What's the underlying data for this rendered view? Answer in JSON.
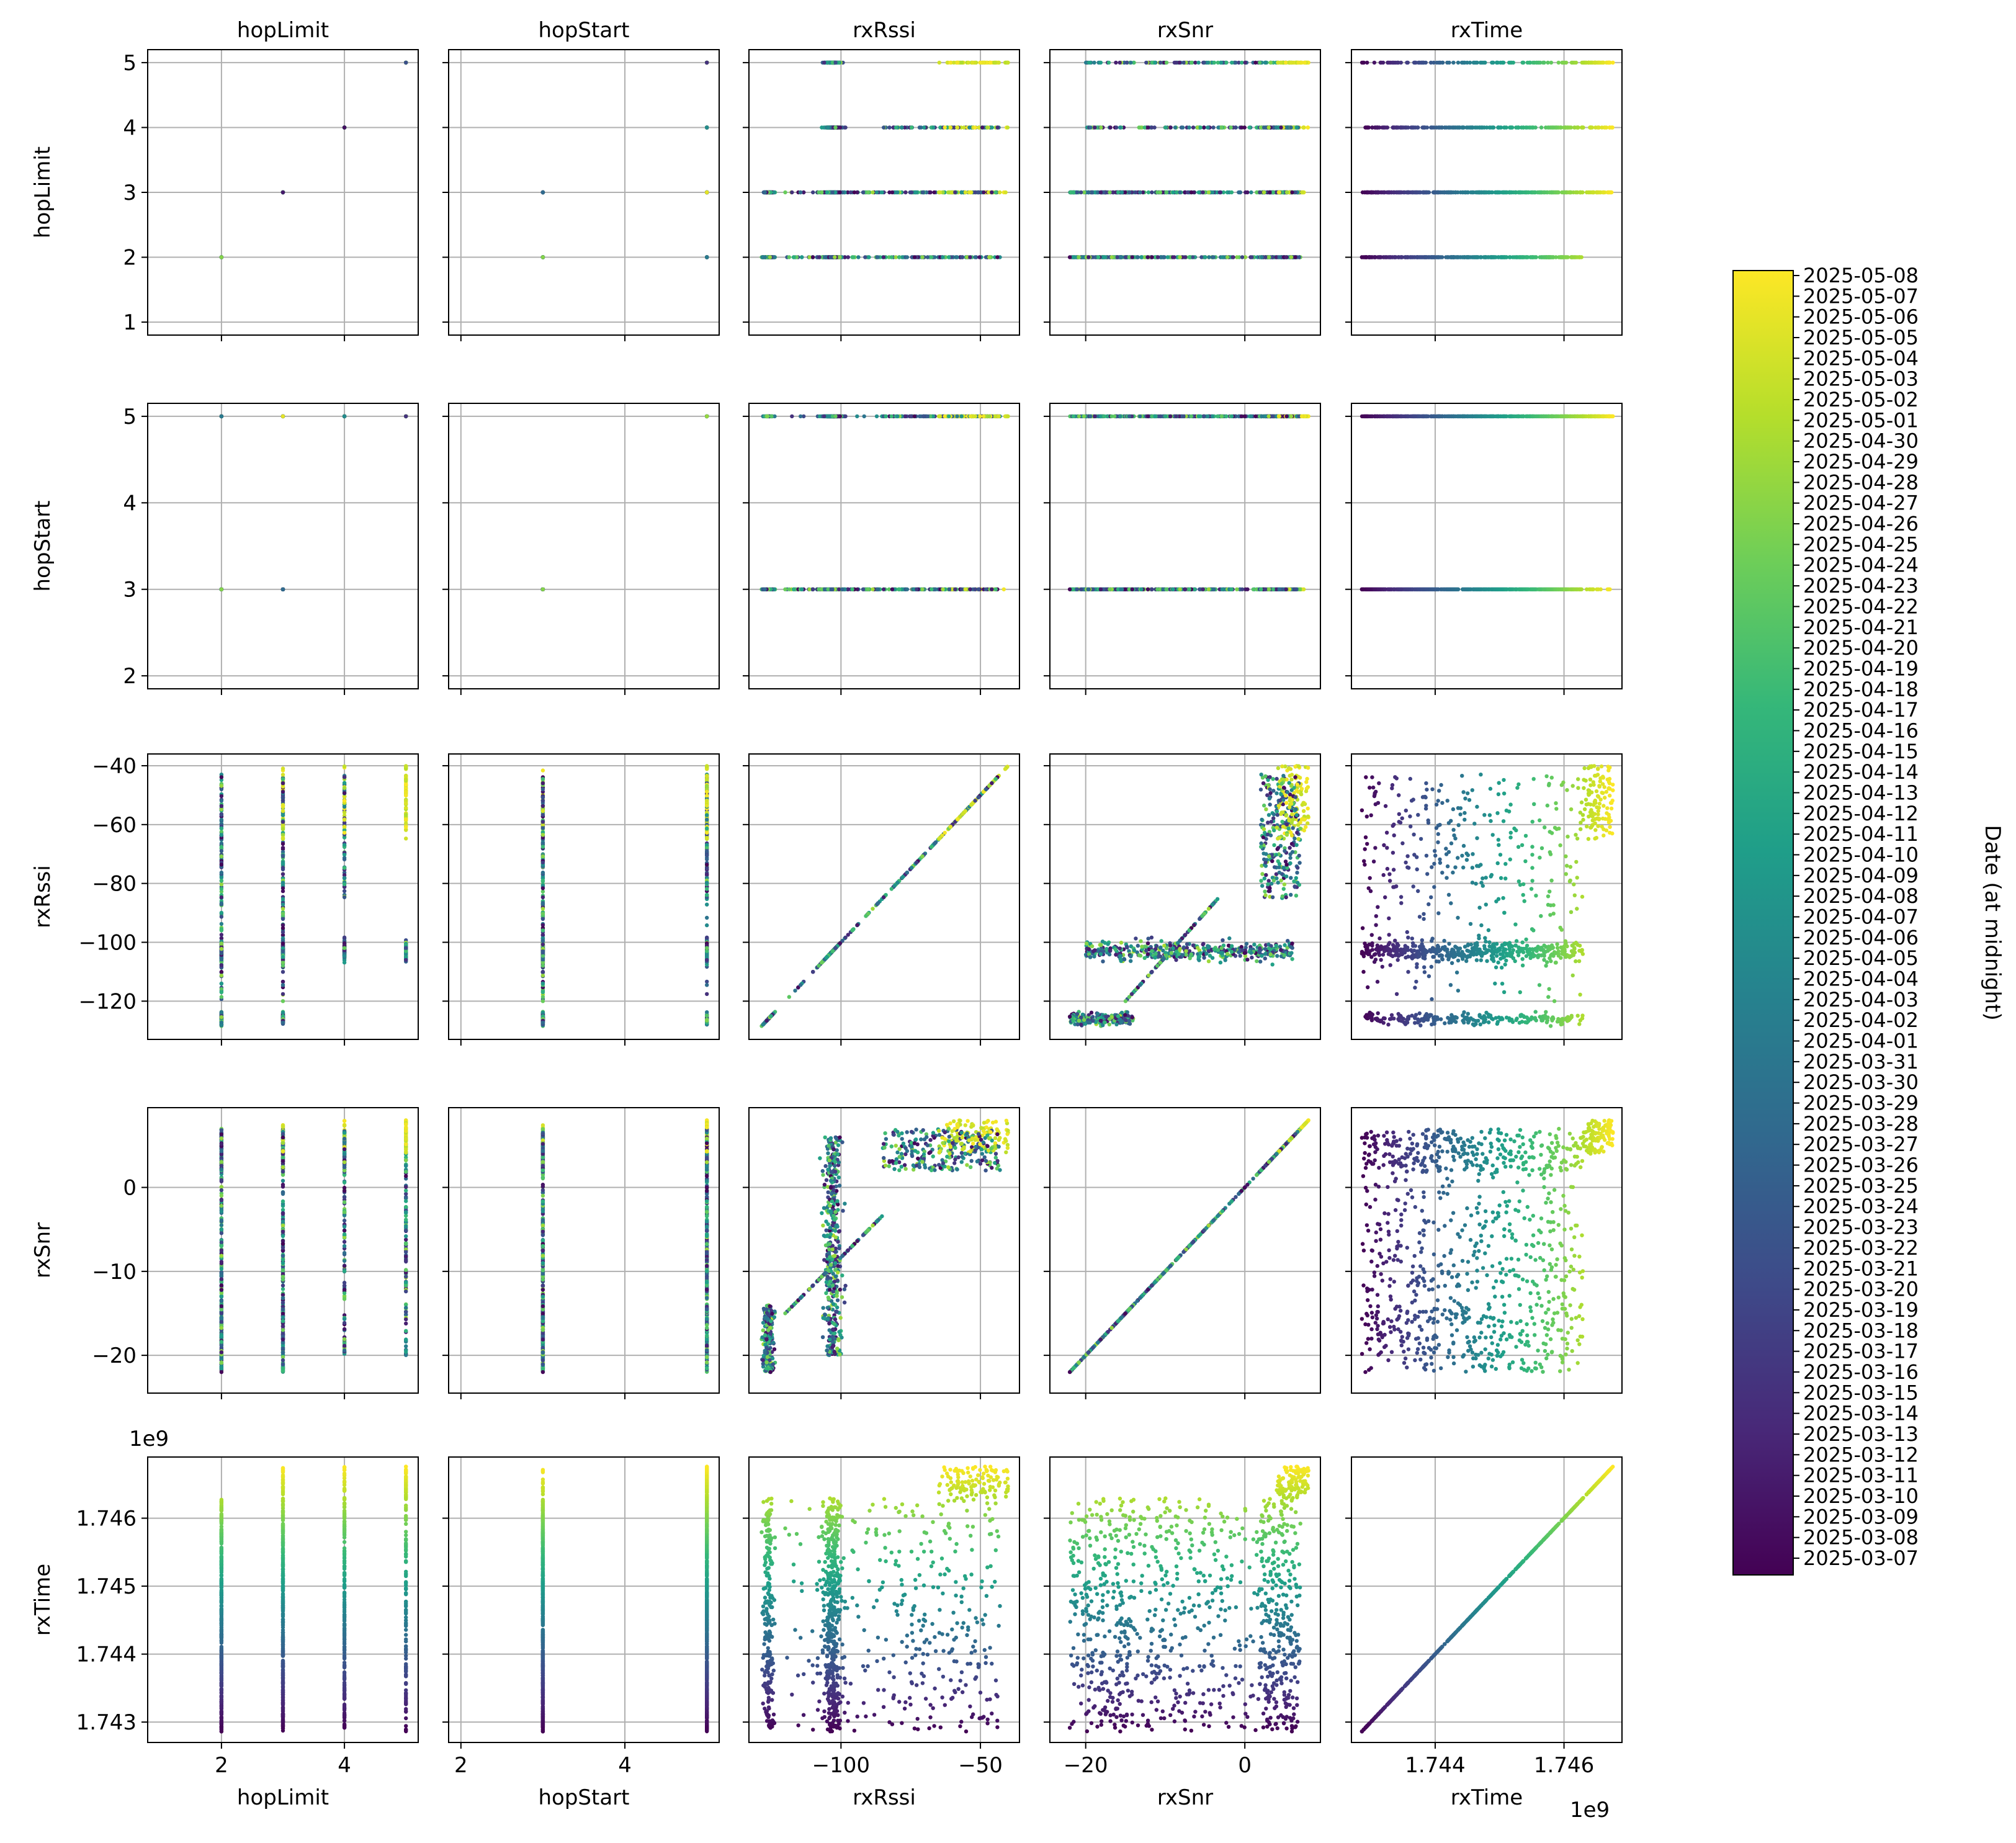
{
  "figure": {
    "columns": [
      "hopLimit",
      "hopStart",
      "rxRssi",
      "rxSnr",
      "rxTime"
    ],
    "rows": [
      "hopLimit",
      "hopStart",
      "rxRssi",
      "rxSnr",
      "rxTime"
    ],
    "offset_label": "1e9",
    "colorbar_label": "Date (at midnight)"
  },
  "chart_data": {
    "type": "scatter",
    "title": "",
    "description_none": "",
    "variables": {
      "hopLimit": {
        "lim": [
          0.8,
          5.2
        ],
        "ticks": [
          2,
          4
        ],
        "tick_labels": [
          "2",
          "4"
        ],
        "yticks": [
          1,
          2,
          3,
          4,
          5
        ],
        "ytick_labels": [
          "1",
          "2",
          "3",
          "4",
          "5"
        ]
      },
      "hopStart": {
        "lim": [
          1.85,
          5.15
        ],
        "ticks": [
          2,
          4
        ],
        "tick_labels": [
          "2",
          "4"
        ],
        "yticks": [
          2,
          3,
          4,
          5
        ],
        "ytick_labels": [
          "2",
          "3",
          "4",
          "5"
        ]
      },
      "rxRssi": {
        "lim": [
          -133,
          -36
        ],
        "ticks": [
          -100,
          -50
        ],
        "tick_labels": [
          "−100",
          "−50"
        ],
        "yticks": [
          -120,
          -100,
          -80,
          -60,
          -40
        ],
        "ytick_labels": [
          "−120",
          "−100",
          "−80",
          "−60",
          "−40"
        ]
      },
      "rxSnr": {
        "lim": [
          -24.5,
          9.5
        ],
        "ticks": [
          -20,
          0
        ],
        "tick_labels": [
          "−20",
          "0"
        ],
        "yticks": [
          -20,
          -10,
          0
        ],
        "ytick_labels": [
          "−20",
          "−10",
          "0"
        ]
      },
      "rxTime": {
        "lim": [
          1742700000,
          1746900000
        ],
        "ticks": [
          1744000000,
          1746000000
        ],
        "tick_labels": [
          "1.744",
          "1.746"
        ],
        "yticks": [
          1743000000,
          1744000000,
          1745000000,
          1746000000
        ],
        "ytick_labels": [
          "1.743",
          "1.744",
          "1.745",
          "1.746"
        ]
      }
    },
    "grid": true,
    "colormap": "viridis",
    "colormap_stops": [
      "#440154",
      "#482878",
      "#3e4a89",
      "#31688e",
      "#26828e",
      "#1f9e89",
      "#35b779",
      "#6ece58",
      "#b5de2b",
      "#fde725"
    ],
    "time_range": [
      1742860000,
      1746760000
    ],
    "hopLimit_values": [
      1,
      2,
      3,
      4,
      5
    ],
    "hopStart_values": [
      2,
      3,
      5
    ],
    "colorbar_ticks": [
      "2025-03-07",
      "2025-03-08",
      "2025-03-09",
      "2025-03-10",
      "2025-03-11",
      "2025-03-12",
      "2025-03-13",
      "2025-03-14",
      "2025-03-15",
      "2025-03-16",
      "2025-03-17",
      "2025-03-18",
      "2025-03-19",
      "2025-03-20",
      "2025-03-21",
      "2025-03-22",
      "2025-03-23",
      "2025-03-24",
      "2025-03-25",
      "2025-03-26",
      "2025-03-27",
      "2025-03-28",
      "2025-03-29",
      "2025-03-30",
      "2025-03-31",
      "2025-04-01",
      "2025-04-02",
      "2025-04-03",
      "2025-04-04",
      "2025-04-05",
      "2025-04-06",
      "2025-04-07",
      "2025-04-08",
      "2025-04-09",
      "2025-04-10",
      "2025-04-11",
      "2025-04-12",
      "2025-04-13",
      "2025-04-14",
      "2025-04-15",
      "2025-04-16",
      "2025-04-17",
      "2025-04-18",
      "2025-04-19",
      "2025-04-20",
      "2025-04-21",
      "2025-04-22",
      "2025-04-23",
      "2025-04-24",
      "2025-04-25",
      "2025-04-26",
      "2025-04-27",
      "2025-04-28",
      "2025-04-29",
      "2025-04-30",
      "2025-05-01",
      "2025-05-02",
      "2025-05-03",
      "2025-05-04",
      "2025-05-05",
      "2025-05-06",
      "2025-05-07",
      "2025-05-08"
    ]
  }
}
